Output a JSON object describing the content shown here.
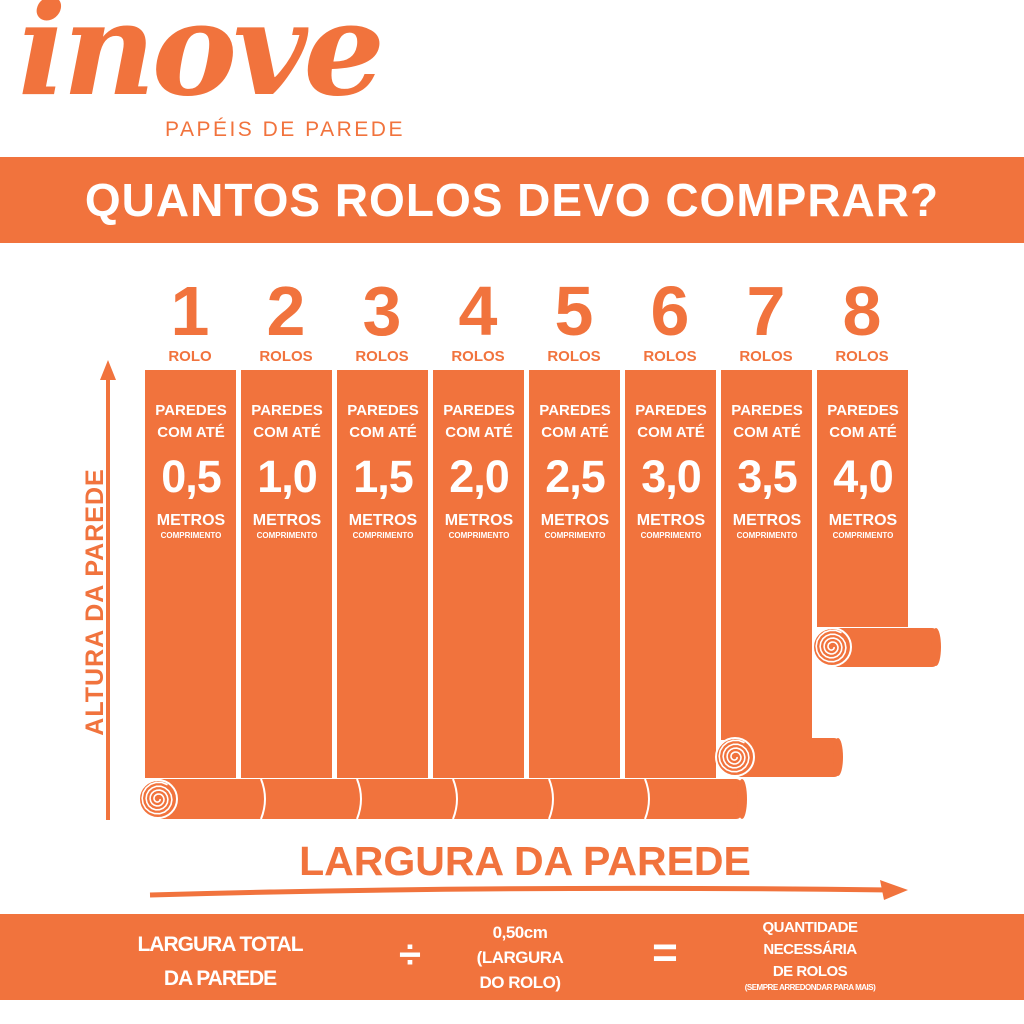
{
  "brand": {
    "logo_text": "inove",
    "tagline": "PAPÉIS DE PAREDE",
    "color": "#f1733d"
  },
  "title": "QUANTOS ROLOS DEVO COMPRAR?",
  "columns": [
    {
      "number": "1",
      "unit": "ROLO",
      "line1": "PAREDES",
      "line2": "COM ATÉ",
      "value": "0,5",
      "metros": "METROS",
      "comprimento": "COMPRIMENTO"
    },
    {
      "number": "2",
      "unit": "ROLOS",
      "line1": "PAREDES",
      "line2": "COM ATÉ",
      "value": "1,0",
      "metros": "METROS",
      "comprimento": "COMPRIMENTO"
    },
    {
      "number": "3",
      "unit": "ROLOS",
      "line1": "PAREDES",
      "line2": "COM ATÉ",
      "value": "1,5",
      "metros": "METROS",
      "comprimento": "COMPRIMENTO"
    },
    {
      "number": "4",
      "unit": "ROLOS",
      "line1": "PAREDES",
      "line2": "COM ATÉ",
      "value": "2,0",
      "metros": "METROS",
      "comprimento": "COMPRIMENTO"
    },
    {
      "number": "5",
      "unit": "ROLOS",
      "line1": "PAREDES",
      "line2": "COM ATÉ",
      "value": "2,5",
      "metros": "METROS",
      "comprimento": "COMPRIMENTO"
    },
    {
      "number": "6",
      "unit": "ROLOS",
      "line1": "PAREDES",
      "line2": "COM ATÉ",
      "value": "3,0",
      "metros": "METROS",
      "comprimento": "COMPRIMENTO"
    },
    {
      "number": "7",
      "unit": "ROLOS",
      "line1": "PAREDES",
      "line2": "COM ATÉ",
      "value": "3,5",
      "metros": "METROS",
      "comprimento": "COMPRIMENTO"
    },
    {
      "number": "8",
      "unit": "ROLOS",
      "line1": "PAREDES",
      "line2": "COM ATÉ",
      "value": "4,0",
      "metros": "METROS",
      "comprimento": "COMPRIMENTO"
    }
  ],
  "axis_height_label": "ALTURA DA PAREDE",
  "axis_width_label": "LARGURA DA PAREDE",
  "formula": {
    "left_line1": "LARGURA TOTAL",
    "left_line2": "DA PAREDE",
    "divide": "÷",
    "mid_line1": "0,50cm",
    "mid_line2": "(LARGURA",
    "mid_line3": "DO ROLO)",
    "equals": "=",
    "right_line1": "QUANTIDADE",
    "right_line2": "NECESSÁRIA",
    "right_line3": "DE ROLOS",
    "right_note": "(SEMPRE ARREDONDAR PARA MAIS)"
  }
}
